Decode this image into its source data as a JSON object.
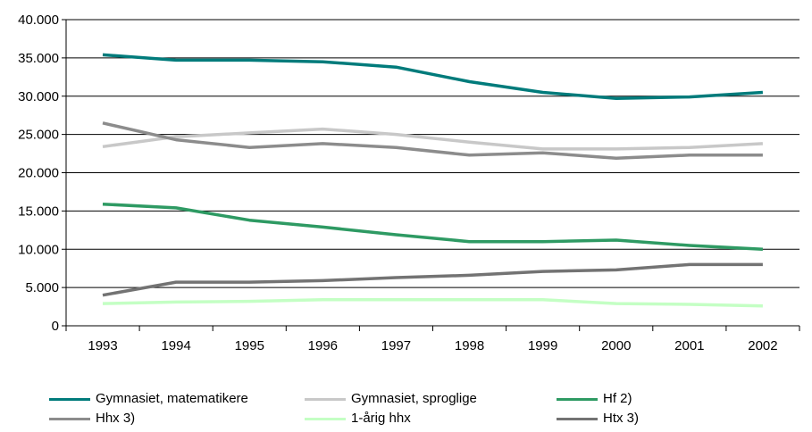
{
  "chart_data": {
    "type": "line",
    "x": [
      "1993",
      "1994",
      "1995",
      "1996",
      "1997",
      "1998",
      "1999",
      "2000",
      "2001",
      "2002"
    ],
    "ylim": [
      0,
      40000
    ],
    "yticks": [
      {
        "value": 0,
        "label": "0"
      },
      {
        "value": 5000,
        "label": "5.000"
      },
      {
        "value": 10000,
        "label": "10.000"
      },
      {
        "value": 15000,
        "label": "15.000"
      },
      {
        "value": 20000,
        "label": "20.000"
      },
      {
        "value": 25000,
        "label": "25.000"
      },
      {
        "value": 30000,
        "label": "30.000"
      },
      {
        "value": 35000,
        "label": "35.000"
      },
      {
        "value": 40000,
        "label": "40.000"
      }
    ],
    "grid": "horizontal",
    "legend_position": "bottom",
    "series": [
      {
        "name": "Gymnasiet, matematikere",
        "color": "#007B7B",
        "values": [
          35400,
          34700,
          34700,
          34500,
          33800,
          31900,
          30500,
          29700,
          29900,
          30500
        ]
      },
      {
        "name": "Gymnasiet, sproglige",
        "color": "#C8C8C8",
        "values": [
          23400,
          24700,
          25200,
          25700,
          25000,
          24000,
          23100,
          23100,
          23300,
          23800
        ]
      },
      {
        "name": "Hf 2)",
        "color": "#2E9A63",
        "values": [
          15900,
          15400,
          13800,
          12900,
          11900,
          11000,
          11000,
          11200,
          10500,
          10000
        ]
      },
      {
        "name": "Hhx 3)",
        "color": "#8C8C8C",
        "values": [
          26500,
          24300,
          23300,
          23800,
          23300,
          22300,
          22600,
          21900,
          22300,
          22300
        ]
      },
      {
        "name": "1-årig hhx",
        "color": "#C4FFC4",
        "values": [
          2900,
          3100,
          3200,
          3400,
          3400,
          3400,
          3400,
          2900,
          2800,
          2600
        ]
      },
      {
        "name": "Htx 3)",
        "color": "#737373",
        "values": [
          4000,
          5700,
          5700,
          5900,
          6300,
          6600,
          7100,
          7300,
          8000,
          8000
        ]
      }
    ]
  }
}
